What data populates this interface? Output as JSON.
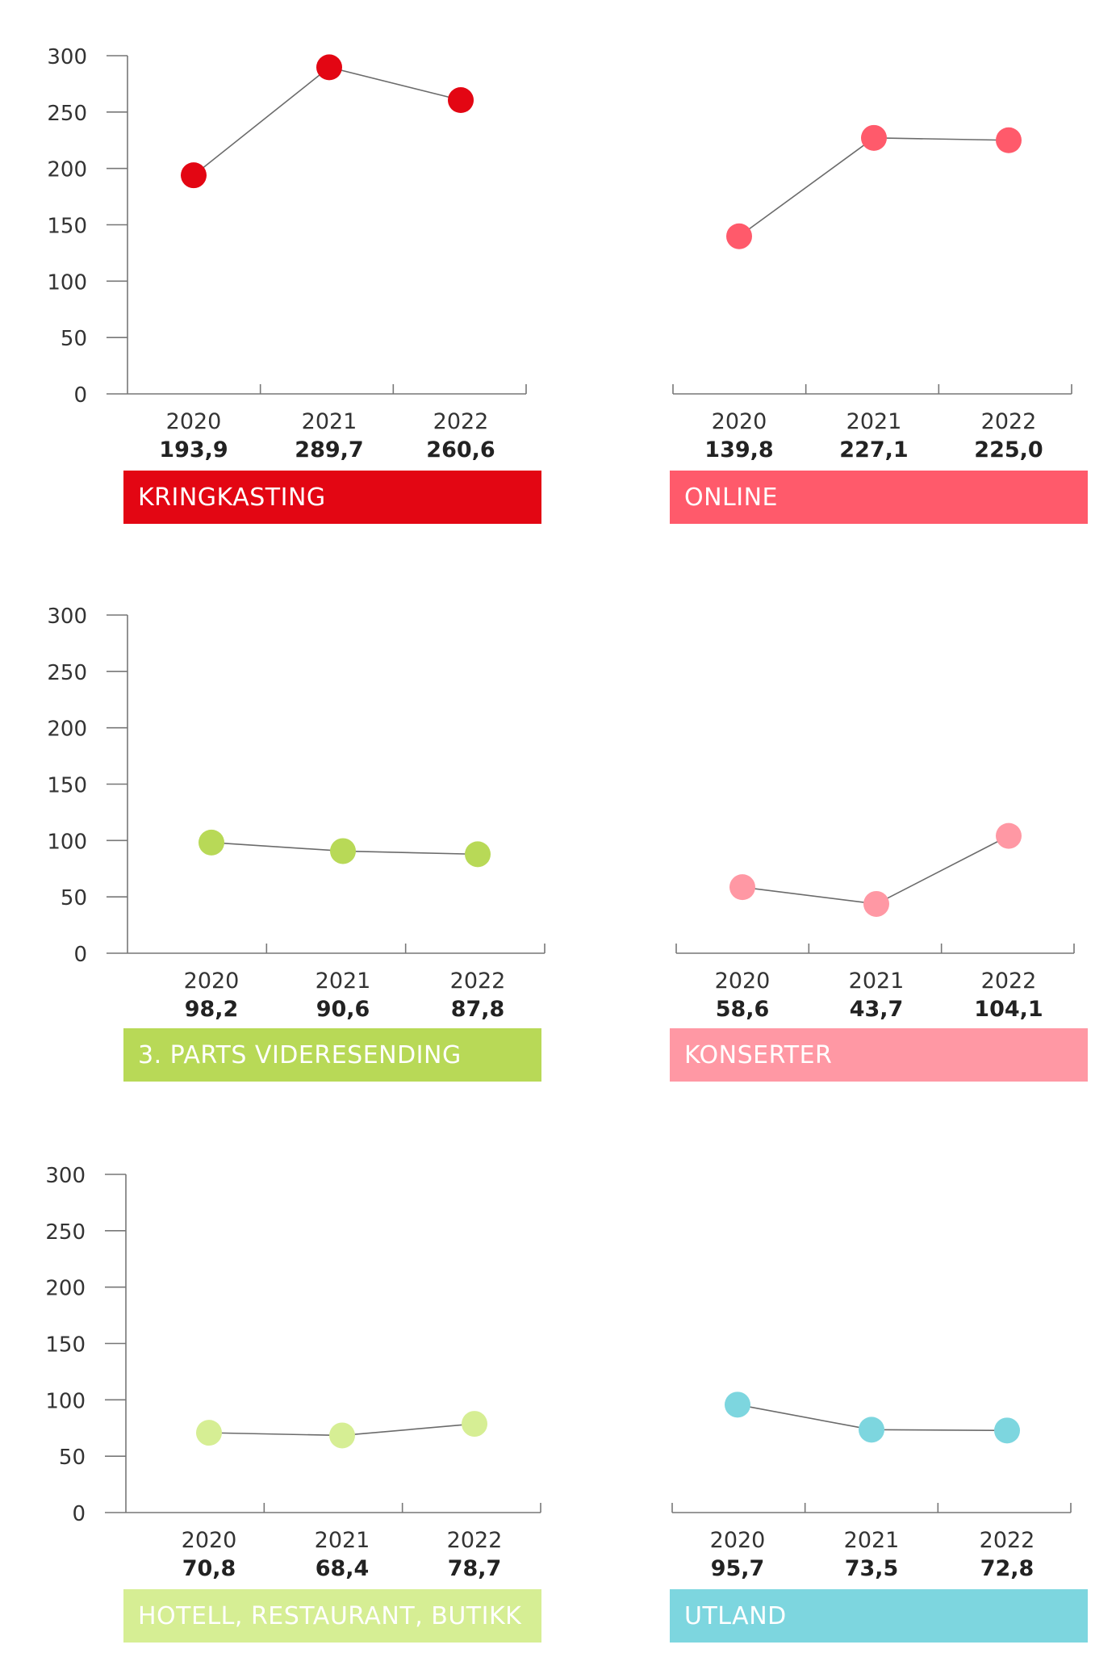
{
  "chart_data": [
    {
      "type": "line",
      "title": "KRINGKASTING",
      "color": "#e30613",
      "categories": [
        "2020",
        "2021",
        "2022"
      ],
      "value_labels": [
        "193,9",
        "289,7",
        "260,6"
      ],
      "values": [
        193.9,
        289.7,
        260.6
      ],
      "ylim": [
        0,
        300
      ],
      "yticks": [
        "0",
        "50",
        "100",
        "150",
        "200",
        "250",
        "300"
      ],
      "show_y_axis": true,
      "grid": false
    },
    {
      "type": "line",
      "title": "ONLINE",
      "color": "#ff5a6b",
      "categories": [
        "2020",
        "2021",
        "2022"
      ],
      "value_labels": [
        "139,8",
        "227,1",
        "225,0"
      ],
      "values": [
        139.8,
        227.1,
        225.0
      ],
      "ylim": [
        0,
        300
      ],
      "show_y_axis": false,
      "grid": false
    },
    {
      "type": "line",
      "title": "3. PARTS VIDERESENDING",
      "color": "#b8d957",
      "categories": [
        "2020",
        "2021",
        "2022"
      ],
      "value_labels": [
        "98,2",
        "90,6",
        "87,8"
      ],
      "values": [
        98.2,
        90.6,
        87.8
      ],
      "ylim": [
        0,
        300
      ],
      "yticks": [
        "0",
        "50",
        "100",
        "150",
        "200",
        "250",
        "300"
      ],
      "show_y_axis": true,
      "grid": false
    },
    {
      "type": "line",
      "title": "KONSERTER",
      "color": "#ff98a4",
      "categories": [
        "2020",
        "2021",
        "2022"
      ],
      "value_labels": [
        "58,6",
        "43,7",
        "104,1"
      ],
      "values": [
        58.6,
        43.7,
        104.1
      ],
      "ylim": [
        0,
        300
      ],
      "show_y_axis": false,
      "grid": false
    },
    {
      "type": "line",
      "title": "HOTELL, RESTAURANT, BUTIKK",
      "color": "#d6ee94",
      "categories": [
        "2020",
        "2021",
        "2022"
      ],
      "value_labels": [
        "70,8",
        "68,4",
        "78,7"
      ],
      "values": [
        70.8,
        68.4,
        78.7
      ],
      "ylim": [
        0,
        300
      ],
      "yticks": [
        "0",
        "50",
        "100",
        "150",
        "200",
        "250",
        "300"
      ],
      "show_y_axis": true,
      "grid": false
    },
    {
      "type": "line",
      "title": "UTLAND",
      "color": "#7dd6df",
      "categories": [
        "2020",
        "2021",
        "2022"
      ],
      "value_labels": [
        "95,7",
        "73,5",
        "72,8"
      ],
      "values": [
        95.7,
        73.5,
        72.8
      ],
      "ylim": [
        0,
        300
      ],
      "show_y_axis": false,
      "grid": false
    }
  ]
}
